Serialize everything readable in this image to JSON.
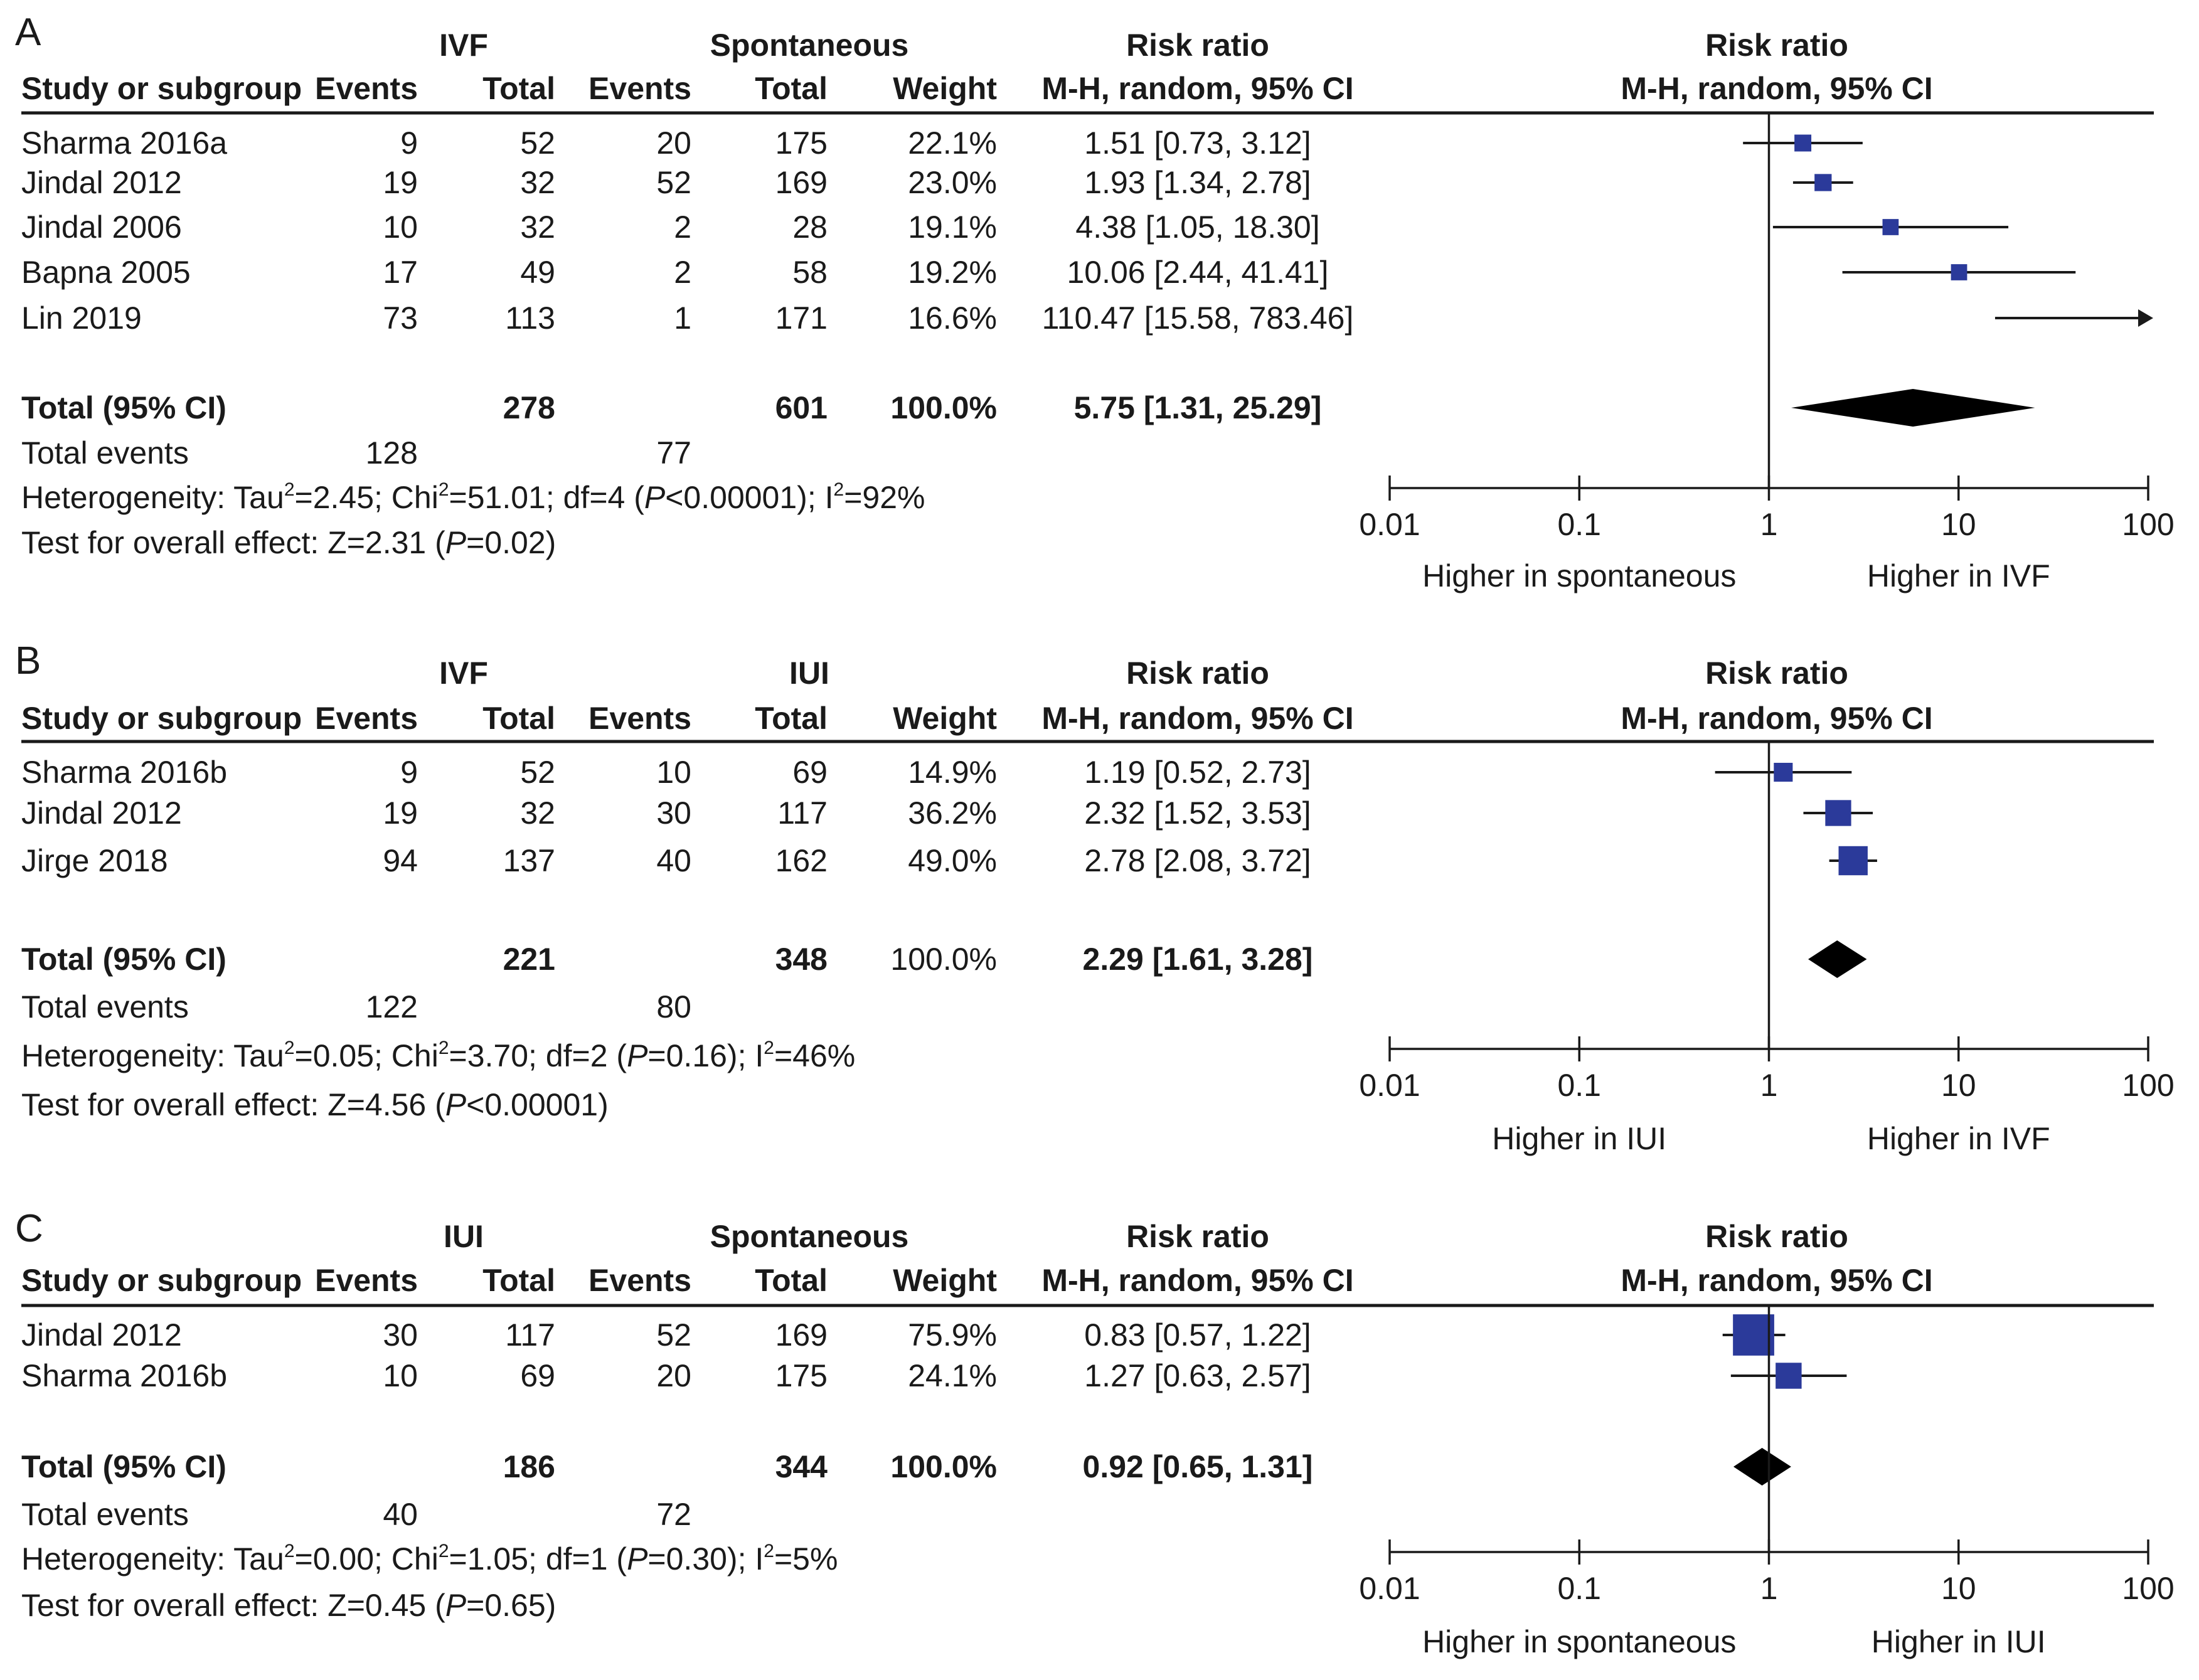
{
  "chart_data": [
    {
      "type": "forest",
      "panel_label": "A",
      "group1": "IVF",
      "group2": "Spontaneous",
      "headers": {
        "study": "Study or subgroup",
        "events1": "Events",
        "total1": "Total",
        "events2": "Events",
        "total2": "Total",
        "weight": "Weight",
        "rr_title": "Risk ratio",
        "rr_method": "M-H, random, 95% CI",
        "plot_title": "Risk ratio",
        "plot_method": "M-H, random, 95% CI"
      },
      "studies": [
        {
          "name": "Sharma 2016a",
          "events1": "9",
          "total1": "52",
          "events2": "20",
          "total2": "175",
          "weight": "22.1%",
          "rr_text": "1.51 [0.73, 3.12]",
          "rr": 1.51,
          "lo": 0.73,
          "hi": 3.12,
          "w": 22.1
        },
        {
          "name": "Jindal 2012",
          "events1": "19",
          "total1": "32",
          "events2": "52",
          "total2": "169",
          "weight": "23.0%",
          "rr_text": "1.93 [1.34, 2.78]",
          "rr": 1.93,
          "lo": 1.34,
          "hi": 2.78,
          "w": 23.0
        },
        {
          "name": "Jindal 2006",
          "events1": "10",
          "total1": "32",
          "events2": "2",
          "total2": "28",
          "weight": "19.1%",
          "rr_text": "4.38 [1.05, 18.30]",
          "rr": 4.38,
          "lo": 1.05,
          "hi": 18.3,
          "w": 19.1
        },
        {
          "name": "Bapna 2005",
          "events1": "17",
          "total1": "49",
          "events2": "2",
          "total2": "58",
          "weight": "19.2%",
          "rr_text": "10.06 [2.44, 41.41]",
          "rr": 10.06,
          "lo": 2.44,
          "hi": 41.41,
          "w": 19.2
        },
        {
          "name": "Lin 2019",
          "events1": "73",
          "total1": "113",
          "events2": "1",
          "total2": "171",
          "weight": "16.6%",
          "rr_text": "110.47 [15.58, 783.46]",
          "rr": 110.47,
          "lo": 15.58,
          "hi": 783.46,
          "w": 16.6
        }
      ],
      "total": {
        "label": "Total (95% CI)",
        "total1": "278",
        "total2": "601",
        "weight": "100.0%",
        "rr_text": "5.75 [1.31, 25.29]",
        "rr": 5.75,
        "lo": 1.31,
        "hi": 25.29
      },
      "total_events": {
        "label": "Total events",
        "events1": "128",
        "events2": "77"
      },
      "heterogeneity": {
        "prefix": "Heterogeneity: Tau",
        "tau2": "=2.45; Chi",
        "chi2": "=51.01; df=4 (",
        "p_label": "P",
        "p_rest": "<0.00001); I",
        "i2": "=92%"
      },
      "overall": {
        "prefix": "Test for overall effect: Z=2.31 (",
        "p_label": "P",
        "p_rest": "=0.02)"
      },
      "xaxis": {
        "scale": "log",
        "ticks": [
          0.01,
          0.1,
          1,
          10,
          100
        ],
        "tick_labels": [
          "0.01",
          "0.1",
          "1",
          "10",
          "100"
        ],
        "xlim": [
          0.01,
          100
        ]
      },
      "favours_left": "Higher in spontaneous",
      "favours_right": "Higher in IVF"
    },
    {
      "type": "forest",
      "panel_label": "B",
      "group1": "IVF",
      "group2": "IUI",
      "headers": {
        "study": "Study or subgroup",
        "events1": "Events",
        "total1": "Total",
        "events2": "Events",
        "total2": "Total",
        "weight": "Weight",
        "rr_title": "Risk ratio",
        "rr_method": "M-H, random, 95% CI",
        "plot_title": "Risk ratio",
        "plot_method": "M-H, random, 95% CI"
      },
      "studies": [
        {
          "name": "Sharma 2016b",
          "events1": "9",
          "total1": "52",
          "events2": "10",
          "total2": "69",
          "weight": "14.9%",
          "rr_text": "1.19 [0.52, 2.73]",
          "rr": 1.19,
          "lo": 0.52,
          "hi": 2.73,
          "w": 14.9
        },
        {
          "name": "Jindal 2012",
          "events1": "19",
          "total1": "32",
          "events2": "30",
          "total2": "117",
          "weight": "36.2%",
          "rr_text": "2.32 [1.52, 3.53]",
          "rr": 2.32,
          "lo": 1.52,
          "hi": 3.53,
          "w": 36.2
        },
        {
          "name": "Jirge 2018",
          "events1": "94",
          "total1": "137",
          "events2": "40",
          "total2": "162",
          "weight": "49.0%",
          "rr_text": "2.78 [2.08, 3.72]",
          "rr": 2.78,
          "lo": 2.08,
          "hi": 3.72,
          "w": 49.0
        }
      ],
      "total": {
        "label": "Total (95% CI)",
        "total1": "221",
        "total2": "348",
        "weight": "100.0%",
        "rr_text": "2.29 [1.61, 3.28]",
        "rr": 2.29,
        "lo": 1.61,
        "hi": 3.28
      },
      "total_events": {
        "label": "Total events",
        "events1": "122",
        "events2": "80"
      },
      "heterogeneity": {
        "prefix": "Heterogeneity: Tau",
        "tau2": "=0.05; Chi",
        "chi2": "=3.70; df=2 (",
        "p_label": "P",
        "p_rest": "=0.16); I",
        "i2": "=46%"
      },
      "overall": {
        "prefix": "Test for overall effect: Z=4.56 (",
        "p_label": "P",
        "p_rest": "<0.00001)"
      },
      "xaxis": {
        "scale": "log",
        "ticks": [
          0.01,
          0.1,
          1,
          10,
          100
        ],
        "tick_labels": [
          "0.01",
          "0.1",
          "1",
          "10",
          "100"
        ],
        "xlim": [
          0.01,
          100
        ]
      },
      "favours_left": "Higher in IUI",
      "favours_right": "Higher in IVF"
    },
    {
      "type": "forest",
      "panel_label": "C",
      "group1": "IUI",
      "group2": "Spontaneous",
      "headers": {
        "study": "Study or subgroup",
        "events1": "Events",
        "total1": "Total",
        "events2": "Events",
        "total2": "Total",
        "weight": "Weight",
        "rr_title": "Risk ratio",
        "rr_method": "M-H, random, 95% CI",
        "plot_title": "Risk ratio",
        "plot_method": "M-H, random, 95% CI"
      },
      "studies": [
        {
          "name": "Jindal 2012",
          "events1": "30",
          "total1": "117",
          "events2": "52",
          "total2": "169",
          "weight": "75.9%",
          "rr_text": "0.83 [0.57, 1.22]",
          "rr": 0.83,
          "lo": 0.57,
          "hi": 1.22,
          "w": 75.9
        },
        {
          "name": "Sharma 2016b",
          "events1": "10",
          "total1": "69",
          "events2": "20",
          "total2": "175",
          "weight": "24.1%",
          "rr_text": "1.27 [0.63, 2.57]",
          "rr": 1.27,
          "lo": 0.63,
          "hi": 2.57,
          "w": 24.1
        }
      ],
      "total": {
        "label": "Total (95% CI)",
        "total1": "186",
        "total2": "344",
        "weight": "100.0%",
        "rr_text": "0.92 [0.65, 1.31]",
        "rr": 0.92,
        "lo": 0.65,
        "hi": 1.31
      },
      "total_events": {
        "label": "Total events",
        "events1": "40",
        "events2": "72"
      },
      "heterogeneity": {
        "prefix": "Heterogeneity: Tau",
        "tau2": "=0.00; Chi",
        "chi2": "=1.05; df=1 (",
        "p_label": "P",
        "p_rest": "=0.30); I",
        "i2": "=5%"
      },
      "overall": {
        "prefix": "Test for overall effect: Z=0.45 (",
        "p_label": "P",
        "p_rest": "=0.65)"
      },
      "xaxis": {
        "scale": "log",
        "ticks": [
          0.01,
          0.1,
          1,
          10,
          100
        ],
        "tick_labels": [
          "0.01",
          "0.1",
          "1",
          "10",
          "100"
        ],
        "xlim": [
          0.01,
          100
        ]
      },
      "favours_left": "Higher in spontaneous",
      "favours_right": "Higher in IUI"
    }
  ],
  "colors": {
    "marker": "#2b3a9a",
    "diamond": "#000000",
    "text": "#1a1a1a",
    "lines": "#1a1a1a"
  }
}
